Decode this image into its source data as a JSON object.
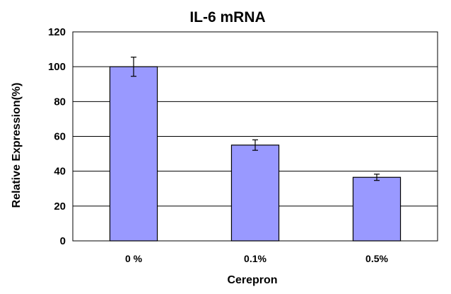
{
  "chart_data": {
    "type": "bar",
    "title": "IL-6 mRNA",
    "xlabel": "Cerepron",
    "ylabel": "Relative Expression(%)",
    "categories": [
      "0 %",
      "0.1%",
      "0.5%"
    ],
    "values": [
      100,
      55,
      36.5
    ],
    "errors": [
      5.5,
      3,
      1.8
    ],
    "ylim": [
      0,
      120
    ],
    "yticks": [
      0,
      20,
      40,
      60,
      80,
      100,
      120
    ],
    "grid": true,
    "legend": "none",
    "bar_color": "#9999ff"
  }
}
